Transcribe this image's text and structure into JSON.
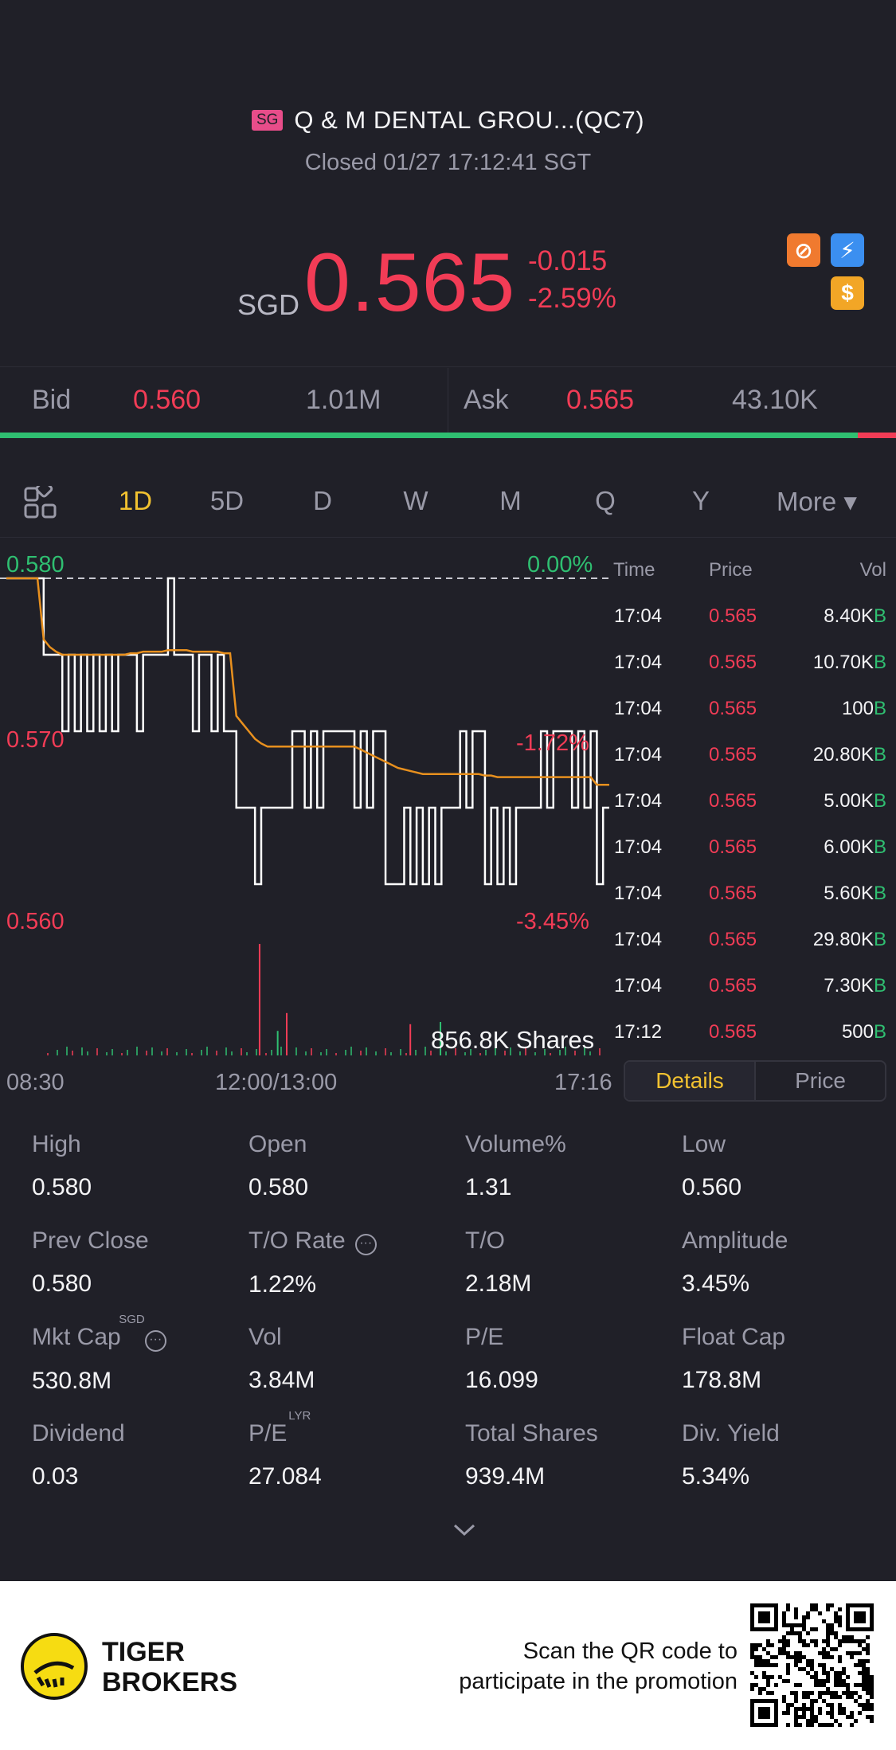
{
  "header": {
    "market_badge": "SG",
    "stock_name": "Q & M DENTAL GROU...(QC7)",
    "status": "Closed 01/27 17:12:41 SGT",
    "currency": "SGD",
    "price": "0.565",
    "change_abs": "-0.015",
    "change_pct": "-2.59%"
  },
  "quote": {
    "bid_label": "Bid",
    "bid_price": "0.560",
    "bid_size": "1.01M",
    "ask_label": "Ask",
    "ask_price": "0.565",
    "ask_size": "43.10K",
    "bid_share": 0.957
  },
  "periods": [
    "1D",
    "5D",
    "D",
    "W",
    "M",
    "Q",
    "Y",
    "More ▾"
  ],
  "active_period": "1D",
  "chart": {
    "y_top": "0.580",
    "y_mid": "0.570",
    "y_bot": "0.560",
    "pct_top": "0.00%",
    "pct_mid": "-1.72%",
    "pct_bot": "-3.45%",
    "shares": "856.8K Shares",
    "times": [
      "08:30",
      "12:00/13:00",
      "17:16"
    ]
  },
  "chart_data": {
    "type": "line",
    "title": "",
    "ylim": [
      0.56,
      0.58
    ],
    "prev_close": 0.58,
    "series": [
      {
        "values": [
          0.58,
          0.58,
          0.58,
          0.58,
          0.58,
          0.58,
          0.575,
          0.575,
          0.575,
          0.57,
          0.575,
          0.57,
          0.575,
          0.57,
          0.575,
          0.57,
          0.575,
          0.57,
          0.575,
          0.575,
          0.575,
          0.57,
          0.575,
          0.575,
          0.575,
          0.575,
          0.58,
          0.575,
          0.575,
          0.575,
          0.57,
          0.575,
          0.575,
          0.57,
          0.575,
          0.57,
          0.57,
          0.565,
          0.565,
          0.565,
          0.56,
          0.565,
          0.565,
          0.565,
          0.565,
          0.565,
          0.57,
          0.57,
          0.565,
          0.57,
          0.565,
          0.57,
          0.57,
          0.57,
          0.57,
          0.57,
          0.565,
          0.57,
          0.565,
          0.57,
          0.57,
          0.56,
          0.56,
          0.56,
          0.565,
          0.56,
          0.565,
          0.56,
          0.565,
          0.56,
          0.565,
          0.565,
          0.565,
          0.57,
          0.565,
          0.57,
          0.57,
          0.56,
          0.565,
          0.56,
          0.565,
          0.56,
          0.565,
          0.565,
          0.565,
          0.565,
          0.57,
          0.565,
          0.57,
          0.57,
          0.57,
          0.565,
          0.57,
          0.565,
          0.57,
          0.56,
          0.565,
          0.565
        ]
      },
      {
        "values": [
          0.58,
          0.58,
          0.58,
          0.58,
          0.58,
          0.58,
          0.576,
          0.5755,
          0.5752,
          0.575,
          0.575,
          0.575,
          0.575,
          0.575,
          0.575,
          0.575,
          0.575,
          0.575,
          0.575,
          0.575,
          0.5751,
          0.5751,
          0.5752,
          0.5752,
          0.5752,
          0.5752,
          0.5753,
          0.5753,
          0.5753,
          0.5753,
          0.5752,
          0.5752,
          0.5752,
          0.5752,
          0.5752,
          0.5751,
          0.5751,
          0.571,
          0.5705,
          0.57,
          0.5695,
          0.5692,
          0.569,
          0.569,
          0.569,
          0.569,
          0.569,
          0.569,
          0.569,
          0.569,
          0.569,
          0.569,
          0.569,
          0.569,
          0.569,
          0.569,
          0.569,
          0.5688,
          0.5686,
          0.5684,
          0.5682,
          0.568,
          0.5678,
          0.5676,
          0.5675,
          0.5674,
          0.5673,
          0.5672,
          0.5672,
          0.5672,
          0.5672,
          0.5672,
          0.5672,
          0.5672,
          0.5672,
          0.5672,
          0.5672,
          0.5671,
          0.5671,
          0.567,
          0.567,
          0.567,
          0.567,
          0.567,
          0.567,
          0.567,
          0.567,
          0.567,
          0.567,
          0.567,
          0.567,
          0.567,
          0.567,
          0.567,
          0.567,
          0.5665,
          0.5665,
          0.5665
        ]
      }
    ],
    "volume_spikes": [
      {
        "t": 0.42,
        "v": 1.0,
        "color": "red"
      },
      {
        "t": 0.465,
        "v": 0.38,
        "color": "red"
      },
      {
        "t": 0.45,
        "v": 0.22,
        "color": "green"
      },
      {
        "t": 0.67,
        "v": 0.28,
        "color": "red"
      },
      {
        "t": 0.72,
        "v": 0.3,
        "color": "green"
      }
    ]
  },
  "trades": {
    "headers": [
      "Time",
      "Price",
      "Vol"
    ],
    "side_marker": "B",
    "rows": [
      {
        "time": "17:04",
        "price": "0.565",
        "vol": "8.40K"
      },
      {
        "time": "17:04",
        "price": "0.565",
        "vol": "10.70K"
      },
      {
        "time": "17:04",
        "price": "0.565",
        "vol": "100"
      },
      {
        "time": "17:04",
        "price": "0.565",
        "vol": "20.80K"
      },
      {
        "time": "17:04",
        "price": "0.565",
        "vol": "5.00K"
      },
      {
        "time": "17:04",
        "price": "0.565",
        "vol": "6.00K"
      },
      {
        "time": "17:04",
        "price": "0.565",
        "vol": "5.60K"
      },
      {
        "time": "17:04",
        "price": "0.565",
        "vol": "29.80K"
      },
      {
        "time": "17:04",
        "price": "0.565",
        "vol": "7.30K"
      },
      {
        "time": "17:12",
        "price": "0.565",
        "vol": "500"
      }
    ]
  },
  "toggle": {
    "details": "Details",
    "price": "Price"
  },
  "stats": [
    {
      "label": "High",
      "value": "0.580"
    },
    {
      "label": "Open",
      "value": "0.580"
    },
    {
      "label": "Volume%",
      "value": "1.31"
    },
    {
      "label": "Low",
      "value": "0.560"
    },
    {
      "label": "Prev Close",
      "value": "0.580"
    },
    {
      "label": "T/O Rate",
      "value": "1.22%"
    },
    {
      "label": "T/O",
      "value": "2.18M"
    },
    {
      "label": "Amplitude",
      "value": "3.45%"
    },
    {
      "label": "Mkt Cap",
      "value": "530.8M",
      "sup": "SGD"
    },
    {
      "label": "Vol",
      "value": "3.84M"
    },
    {
      "label": "P/E",
      "value": "16.099"
    },
    {
      "label": "Float Cap",
      "value": "178.8M"
    },
    {
      "label": "Dividend",
      "value": "0.03"
    },
    {
      "label": "P/E",
      "value": "27.084",
      "sup": "LYR"
    },
    {
      "label": "Total Shares",
      "value": "939.4M"
    },
    {
      "label": "Div. Yield",
      "value": "5.34%"
    }
  ],
  "footer": {
    "brand_line1": "TIGER",
    "brand_line2": "BROKERS",
    "promo_line1": "Scan the QR code to",
    "promo_line2": "participate in the promotion"
  },
  "colors": {
    "background": "#202028",
    "down_red": "#f23c56",
    "up_green": "#2fbf71",
    "accent_yellow": "#f2c230",
    "avg_line_orange": "#e8901e"
  }
}
